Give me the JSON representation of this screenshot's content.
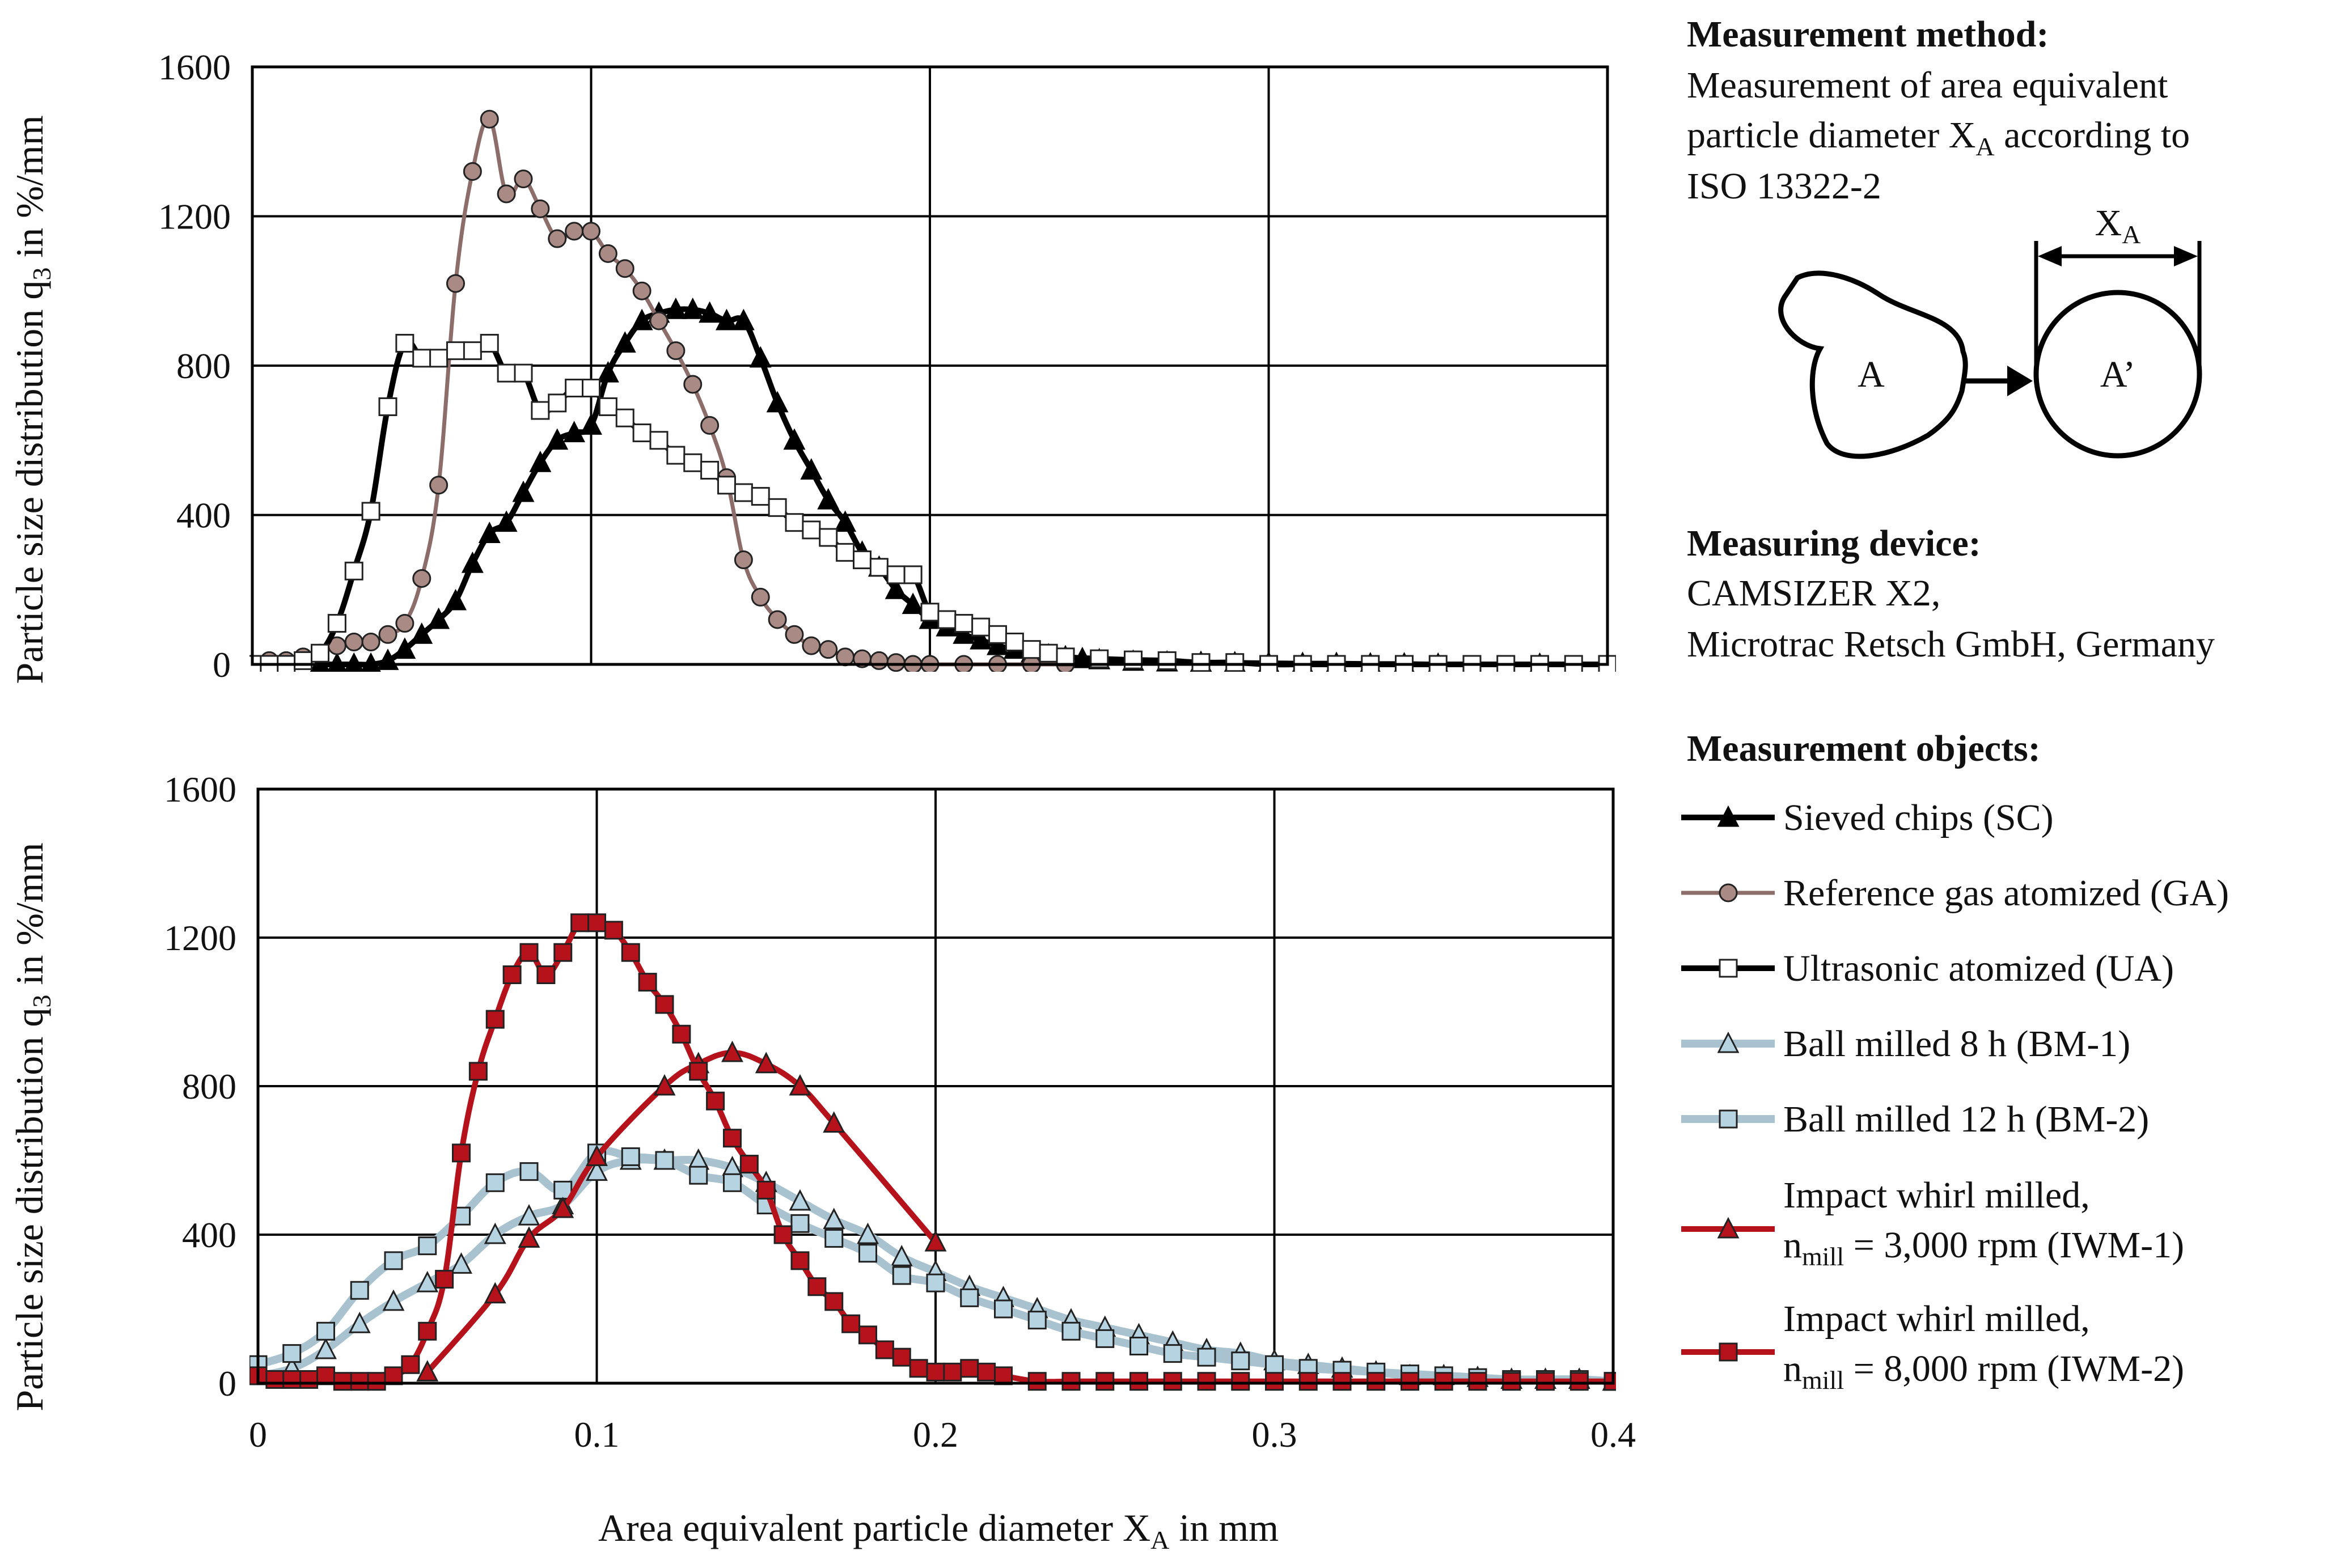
{
  "colors": {
    "black": "#000000",
    "ga_line": "#8c6d6a",
    "ga_fill": "#a98a85",
    "bm_line": "#a8c2d0",
    "bm_fill": "#b6d3e2",
    "iwm_line": "#b5121b",
    "iwm_fill": "#b5121b"
  },
  "notes": {
    "method_heading": "Measurement method:",
    "method_line1": "Measurement of area equivalent",
    "method_line2_pre": "particle diameter X",
    "method_line2_sub": "A",
    "method_line2_post": " according to",
    "method_line3": "ISO 13322-2",
    "diagram_label_xa": "X",
    "diagram_label_xa_sub": "A",
    "diagram_label_a": "A",
    "diagram_label_a_prime": "A’",
    "device_heading": "Measuring device:",
    "device_line1": "CAMSIZER X2,",
    "device_line2": "Microtrac Retsch GmbH, Germany",
    "objects_heading": "Measurement objects:"
  },
  "legend": [
    {
      "key": "SC",
      "label": "Sieved chips (SC)"
    },
    {
      "key": "GA",
      "label": "Reference gas atomized (GA)"
    },
    {
      "key": "UA",
      "label": "Ultrasonic atomized (UA)"
    },
    {
      "key": "BM1",
      "label": "Ball milled 8 h (BM-1)"
    },
    {
      "key": "BM2",
      "label": "Ball milled 12 h (BM-2)"
    },
    {
      "key": "IWM1",
      "label_line1": "Impact whirl milled,",
      "label_line2_pre": "n",
      "label_line2_sub": "mill",
      "label_line2_post": " = 3,000 rpm (IWM-1)"
    },
    {
      "key": "IWM2",
      "label_line1": "Impact whirl milled,",
      "label_line2_pre": "n",
      "label_line2_sub": "mill",
      "label_line2_post": " = 8,000 rpm (IWM-2)"
    }
  ],
  "chart_data": [
    {
      "type": "line",
      "panel": "top",
      "xlabel_pre": "Area equivalent particle diameter X",
      "xlabel_sub": "A",
      "xlabel_post": " in mm",
      "ylabel_pre": "Particle size distribution q",
      "ylabel_sub": "3",
      "ylabel_post": " in %/mm",
      "xlim": [
        0,
        0.4
      ],
      "ylim": [
        0,
        1600
      ],
      "xticks": [
        0,
        0.1,
        0.2,
        0.3,
        0.4
      ],
      "yticks": [
        "0",
        "400",
        "800",
        "1200",
        "1600"
      ],
      "grid": true,
      "series": [
        {
          "name": "Sieved chips (SC)",
          "marker": "triangle",
          "color": "black",
          "fill": "black",
          "x": [
            0.02,
            0.025,
            0.03,
            0.035,
            0.04,
            0.045,
            0.05,
            0.055,
            0.06,
            0.065,
            0.07,
            0.075,
            0.08,
            0.085,
            0.09,
            0.095,
            0.1,
            0.105,
            0.11,
            0.115,
            0.12,
            0.125,
            0.13,
            0.135,
            0.14,
            0.145,
            0.15,
            0.155,
            0.16,
            0.165,
            0.17,
            0.175,
            0.18,
            0.185,
            0.19,
            0.195,
            0.2,
            0.205,
            0.21,
            0.215,
            0.22,
            0.225,
            0.23,
            0.235,
            0.24,
            0.245,
            0.25,
            0.26,
            0.27,
            0.28,
            0.29,
            0.3,
            0.31,
            0.32,
            0.33,
            0.34,
            0.35,
            0.38
          ],
          "y": [
            0,
            0,
            0,
            0,
            10,
            40,
            80,
            120,
            170,
            270,
            350,
            380,
            460,
            540,
            600,
            620,
            640,
            780,
            860,
            920,
            940,
            950,
            950,
            940,
            920,
            920,
            820,
            700,
            600,
            520,
            440,
            380,
            300,
            260,
            200,
            160,
            120,
            100,
            80,
            65,
            50,
            40,
            30,
            25,
            20,
            15,
            12,
            8,
            6,
            5,
            4,
            3,
            2,
            2,
            1,
            1,
            0,
            0
          ]
        },
        {
          "name": "Reference gas atomized (GA)",
          "marker": "circle",
          "color": "ga_line",
          "fill": "ga_fill",
          "x": [
            0.005,
            0.01,
            0.015,
            0.02,
            0.025,
            0.03,
            0.035,
            0.04,
            0.045,
            0.05,
            0.055,
            0.06,
            0.065,
            0.07,
            0.075,
            0.08,
            0.085,
            0.09,
            0.095,
            0.1,
            0.105,
            0.11,
            0.115,
            0.12,
            0.125,
            0.13,
            0.135,
            0.14,
            0.145,
            0.15,
            0.155,
            0.16,
            0.165,
            0.17,
            0.175,
            0.18,
            0.185,
            0.19,
            0.195,
            0.2,
            0.21,
            0.22,
            0.23,
            0.24
          ],
          "y": [
            10,
            10,
            20,
            30,
            50,
            60,
            60,
            80,
            110,
            230,
            480,
            1020,
            1320,
            1460,
            1260,
            1300,
            1220,
            1140,
            1160,
            1160,
            1100,
            1060,
            1000,
            920,
            840,
            750,
            640,
            500,
            280,
            180,
            120,
            80,
            50,
            40,
            20,
            15,
            10,
            5,
            0,
            0,
            0,
            0,
            0,
            0
          ]
        },
        {
          "name": "Ultrasonic atomized (UA)",
          "marker": "square",
          "color": "black",
          "fill": "white",
          "x": [
            0,
            0.005,
            0.01,
            0.015,
            0.02,
            0.025,
            0.03,
            0.035,
            0.04,
            0.045,
            0.05,
            0.055,
            0.06,
            0.065,
            0.07,
            0.075,
            0.08,
            0.085,
            0.09,
            0.095,
            0.1,
            0.105,
            0.11,
            0.115,
            0.12,
            0.125,
            0.13,
            0.135,
            0.14,
            0.145,
            0.15,
            0.155,
            0.16,
            0.165,
            0.17,
            0.175,
            0.18,
            0.185,
            0.19,
            0.195,
            0.2,
            0.205,
            0.21,
            0.215,
            0.22,
            0.225,
            0.23,
            0.235,
            0.24,
            0.25,
            0.26,
            0.27,
            0.28,
            0.29,
            0.3,
            0.31,
            0.32,
            0.33,
            0.34,
            0.35,
            0.36,
            0.37,
            0.38,
            0.39,
            0.4
          ],
          "y": [
            0,
            0,
            0,
            10,
            30,
            110,
            250,
            410,
            690,
            860,
            820,
            820,
            840,
            840,
            860,
            780,
            780,
            680,
            700,
            740,
            740,
            690,
            660,
            620,
            600,
            560,
            540,
            520,
            480,
            460,
            450,
            420,
            380,
            360,
            340,
            300,
            280,
            260,
            240,
            240,
            140,
            120,
            110,
            100,
            80,
            60,
            40,
            30,
            20,
            15,
            12,
            10,
            5,
            5,
            0,
            0,
            0,
            0,
            0,
            0,
            0,
            0,
            0,
            0,
            0
          ]
        }
      ]
    },
    {
      "type": "line",
      "panel": "bottom",
      "xlabel_pre": "Area equivalent particle diameter X",
      "xlabel_sub": "A",
      "xlabel_post": " in mm",
      "ylabel_pre": "Particle size distribution q",
      "ylabel_sub": "3",
      "ylabel_post": " in %/mm",
      "xlim": [
        0,
        0.4
      ],
      "ylim": [
        0,
        1600
      ],
      "xticks": [
        0,
        0.1,
        0.2,
        0.3,
        0.4
      ],
      "xtick_labels": [
        "0",
        "0.1",
        "0.2",
        "0.3",
        "0.4"
      ],
      "yticks": [
        "0",
        "400",
        "800",
        "1200",
        "1600"
      ],
      "grid": true,
      "series": [
        {
          "name": "Ball milled 8 h (BM-1)",
          "marker": "triangle",
          "color": "bm_line",
          "fill": "bm_fill",
          "x": [
            0,
            0.01,
            0.02,
            0.03,
            0.04,
            0.05,
            0.06,
            0.07,
            0.08,
            0.09,
            0.1,
            0.11,
            0.12,
            0.13,
            0.14,
            0.15,
            0.16,
            0.17,
            0.18,
            0.19,
            0.2,
            0.21,
            0.22,
            0.23,
            0.24,
            0.25,
            0.26,
            0.27,
            0.28,
            0.29,
            0.3,
            0.31,
            0.32,
            0.33,
            0.34,
            0.35,
            0.36,
            0.37,
            0.38,
            0.39,
            0.4
          ],
          "y": [
            20,
            40,
            90,
            160,
            220,
            270,
            320,
            400,
            450,
            480,
            570,
            600,
            600,
            600,
            580,
            540,
            490,
            440,
            400,
            340,
            300,
            260,
            230,
            200,
            170,
            150,
            130,
            110,
            90,
            80,
            60,
            50,
            40,
            30,
            20,
            20,
            15,
            10,
            10,
            10,
            5
          ]
        },
        {
          "name": "Ball milled 12 h (BM-2)",
          "marker": "square",
          "color": "bm_line",
          "fill": "bm_fill",
          "x": [
            0,
            0.01,
            0.02,
            0.03,
            0.04,
            0.05,
            0.06,
            0.07,
            0.08,
            0.09,
            0.1,
            0.11,
            0.12,
            0.13,
            0.14,
            0.15,
            0.16,
            0.17,
            0.18,
            0.19,
            0.2,
            0.21,
            0.22,
            0.23,
            0.24,
            0.25,
            0.26,
            0.27,
            0.28,
            0.29,
            0.3,
            0.31,
            0.32,
            0.33,
            0.34,
            0.35,
            0.36,
            0.37,
            0.38,
            0.39,
            0.4
          ],
          "y": [
            50,
            80,
            140,
            250,
            330,
            370,
            450,
            540,
            570,
            520,
            620,
            610,
            600,
            560,
            540,
            480,
            430,
            390,
            350,
            290,
            270,
            230,
            200,
            170,
            140,
            120,
            100,
            80,
            70,
            60,
            50,
            40,
            35,
            30,
            25,
            20,
            15,
            10,
            10,
            10,
            5
          ]
        },
        {
          "name": "Impact whirl milled, n_mill = 3,000 rpm (IWM-1)",
          "marker": "triangle",
          "color": "iwm_line",
          "fill": "iwm_fill",
          "x": [
            0.05,
            0.07,
            0.08,
            0.09,
            0.1,
            0.12,
            0.13,
            0.14,
            0.15,
            0.16,
            0.17,
            0.2
          ],
          "y": [
            30,
            240,
            390,
            470,
            610,
            800,
            860,
            890,
            860,
            800,
            700,
            380
          ]
        },
        {
          "name": "Impact whirl milled, n_mill = 8,000 rpm (IWM-2)",
          "marker": "square",
          "color": "iwm_line",
          "fill": "iwm_fill",
          "x": [
            0,
            0.005,
            0.01,
            0.015,
            0.02,
            0.025,
            0.03,
            0.035,
            0.04,
            0.045,
            0.05,
            0.055,
            0.06,
            0.065,
            0.07,
            0.075,
            0.08,
            0.085,
            0.09,
            0.095,
            0.1,
            0.105,
            0.11,
            0.115,
            0.12,
            0.125,
            0.13,
            0.135,
            0.14,
            0.145,
            0.15,
            0.155,
            0.16,
            0.165,
            0.17,
            0.175,
            0.18,
            0.185,
            0.19,
            0.195,
            0.2,
            0.205,
            0.21,
            0.215,
            0.22,
            0.23,
            0.24,
            0.25,
            0.26,
            0.27,
            0.28,
            0.29,
            0.3,
            0.31,
            0.32,
            0.33,
            0.34,
            0.35,
            0.36,
            0.37,
            0.38,
            0.39,
            0.4
          ],
          "y": [
            20,
            10,
            10,
            10,
            20,
            5,
            5,
            5,
            20,
            50,
            140,
            280,
            620,
            840,
            980,
            1100,
            1160,
            1100,
            1160,
            1240,
            1240,
            1220,
            1160,
            1080,
            1020,
            940,
            840,
            760,
            660,
            590,
            520,
            400,
            330,
            260,
            220,
            160,
            130,
            90,
            70,
            40,
            30,
            30,
            40,
            30,
            20,
            5,
            5,
            5,
            5,
            5,
            5,
            5,
            5,
            5,
            5,
            5,
            5,
            5,
            5,
            5,
            5,
            5,
            5
          ]
        }
      ]
    }
  ]
}
